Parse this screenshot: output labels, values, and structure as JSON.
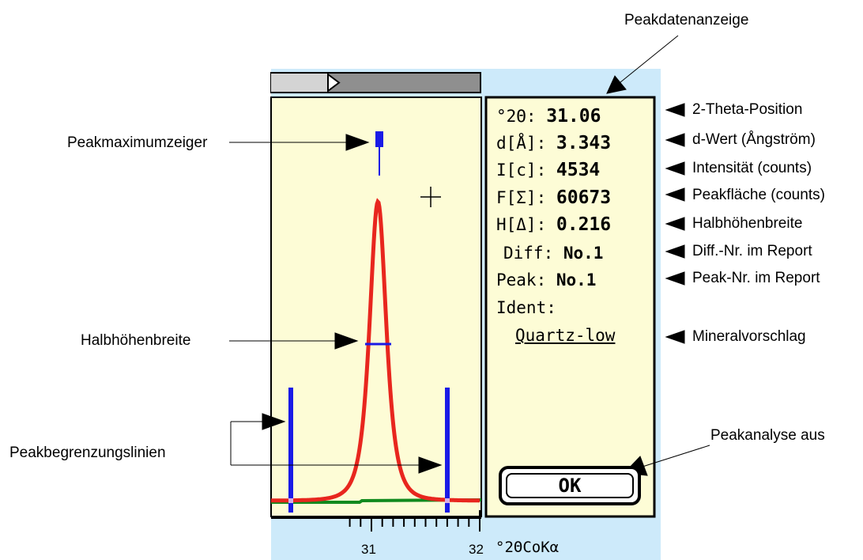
{
  "callouts": {
    "peak_data_display": "Peakdatenanzeige",
    "peak_max_pointer": "Peakmaximumzeiger",
    "half_height_width": "Halbhöhenbreite",
    "peak_boundary_lines": "Peakbegrenzungslinien",
    "peak_analysis_off": "Peakanalyse aus",
    "two_theta_position": "2-Theta-Position",
    "d_value": "d-Wert (Ångström)",
    "intensity": "Intensität (counts)",
    "peak_area": "Peakfläche (counts)",
    "fwhm": "Halbhöhenbreite",
    "diff_no": "Diff.-Nr. im Report",
    "peak_no": "Peak-Nr. im Report",
    "mineral_suggestion": "Mineralvorschlag"
  },
  "peak_data": {
    "two_theta_label": "°2Θ:",
    "two_theta_value": "31.06",
    "d_label": "d[Å]:",
    "d_value": "3.343",
    "intensity_label": "I[c]:",
    "intensity_value": "4534",
    "area_label": "F[Σ]:",
    "area_value": "60673",
    "fwhm_label": "H[Δ]:",
    "fwhm_value": "0.216",
    "diff_label": "Diff:",
    "diff_value": "No.1",
    "peak_label": "Peak:",
    "peak_value": "No.1",
    "ident_label": "Ident:",
    "ident_value": "Quartz-low"
  },
  "ok_button": {
    "label": "OK"
  },
  "axis": {
    "tick_31": "31",
    "tick_32": "32",
    "unit_label": "°2ΘCoKα"
  },
  "chart_data": {
    "type": "line",
    "peak_two_theta": 31.06,
    "peak_intensity": 4534,
    "boundary_left": 30.66,
    "boundary_right": 31.72,
    "fwhm": 0.216,
    "x_ticks": [
      31,
      32
    ],
    "colors": {
      "peak_curve": "#e8261e",
      "background_line": "#118a1e",
      "markers": "#1a1ae6",
      "plot_bg": "#fdfcd6",
      "app_bg": "#cdeafa"
    }
  }
}
